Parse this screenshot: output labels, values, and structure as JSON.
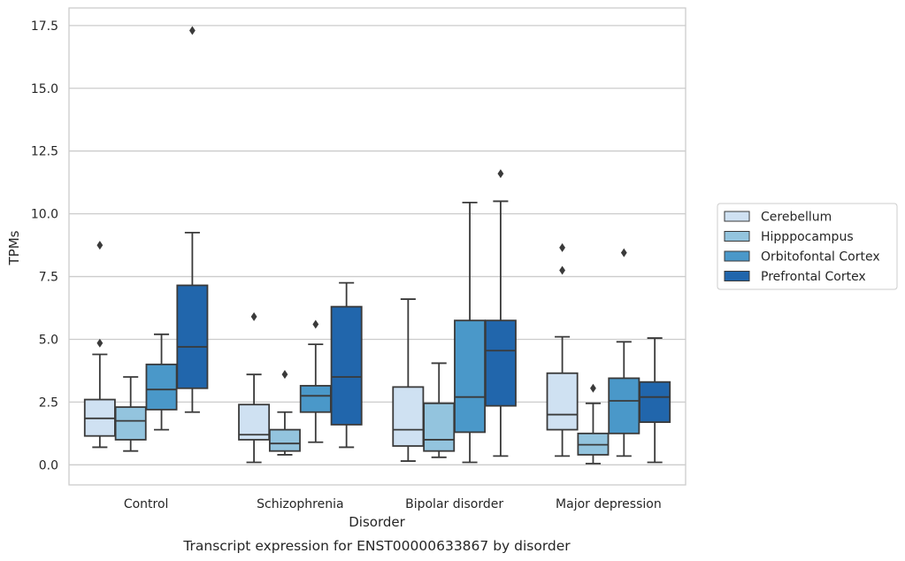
{
  "chart_data": {
    "type": "box",
    "caption": "Transcript expression for ENST00000633867 by disorder",
    "xlabel": "Disorder",
    "ylabel": "TPMs",
    "ylim": [
      -0.8,
      18.2
    ],
    "yticks": [
      "0.0",
      "2.5",
      "5.0",
      "7.5",
      "10.0",
      "12.5",
      "15.0",
      "17.5"
    ],
    "grid": "horizontal",
    "legend_placement": "center-right outside",
    "categories": [
      "Control",
      "Schizophrenia",
      "Bipolar disorder",
      "Major depression"
    ],
    "series": [
      {
        "name": "Cerebellum",
        "color": "#cfe1f2",
        "boxes": [
          {
            "whislo": 0.7,
            "q1": 1.15,
            "med": 1.85,
            "q3": 2.6,
            "whishi": 4.4,
            "fliers": [
              4.85,
              8.75
            ]
          },
          {
            "whislo": 0.1,
            "q1": 1.0,
            "med": 1.2,
            "q3": 2.4,
            "whishi": 3.6,
            "fliers": [
              5.9
            ]
          },
          {
            "whislo": 0.15,
            "q1": 0.75,
            "med": 1.4,
            "q3": 3.1,
            "whishi": 6.6,
            "fliers": []
          },
          {
            "whislo": 0.35,
            "q1": 1.4,
            "med": 2.0,
            "q3": 3.65,
            "whishi": 5.1,
            "fliers": [
              7.75,
              8.65
            ]
          }
        ]
      },
      {
        "name": "Hipppocampus",
        "color": "#93c4de",
        "boxes": [
          {
            "whislo": 0.55,
            "q1": 1.0,
            "med": 1.75,
            "q3": 2.3,
            "whishi": 3.5,
            "fliers": []
          },
          {
            "whislo": 0.4,
            "q1": 0.55,
            "med": 0.85,
            "q3": 1.4,
            "whishi": 2.1,
            "fliers": [
              3.6
            ]
          },
          {
            "whislo": 0.3,
            "q1": 0.55,
            "med": 1.0,
            "q3": 2.45,
            "whishi": 4.05,
            "fliers": []
          },
          {
            "whislo": 0.05,
            "q1": 0.4,
            "med": 0.8,
            "q3": 1.25,
            "whishi": 2.45,
            "fliers": [
              3.05
            ]
          }
        ]
      },
      {
        "name": "Orbitofontal Cortex",
        "color": "#4a98c9",
        "boxes": [
          {
            "whislo": 1.4,
            "q1": 2.2,
            "med": 3.0,
            "q3": 4.0,
            "whishi": 5.2,
            "fliers": []
          },
          {
            "whislo": 0.9,
            "q1": 2.1,
            "med": 2.75,
            "q3": 3.15,
            "whishi": 4.8,
            "fliers": [
              5.6
            ]
          },
          {
            "whislo": 0.1,
            "q1": 1.3,
            "med": 2.7,
            "q3": 5.75,
            "whishi": 10.45,
            "fliers": []
          },
          {
            "whislo": 0.35,
            "q1": 1.25,
            "med": 2.55,
            "q3": 3.45,
            "whishi": 4.9,
            "fliers": [
              8.45
            ]
          }
        ]
      },
      {
        "name": "Prefrontal Cortex",
        "color": "#2166ac",
        "boxes": [
          {
            "whislo": 2.1,
            "q1": 3.05,
            "med": 4.7,
            "q3": 7.15,
            "whishi": 9.25,
            "fliers": [
              17.3
            ]
          },
          {
            "whislo": 0.7,
            "q1": 1.6,
            "med": 3.5,
            "q3": 6.3,
            "whishi": 7.25,
            "fliers": []
          },
          {
            "whislo": 0.35,
            "q1": 2.35,
            "med": 4.55,
            "q3": 5.75,
            "whishi": 10.5,
            "fliers": [
              11.6
            ]
          },
          {
            "whislo": 0.1,
            "q1": 1.7,
            "med": 2.7,
            "q3": 3.3,
            "whishi": 5.05,
            "fliers": []
          }
        ]
      }
    ]
  }
}
